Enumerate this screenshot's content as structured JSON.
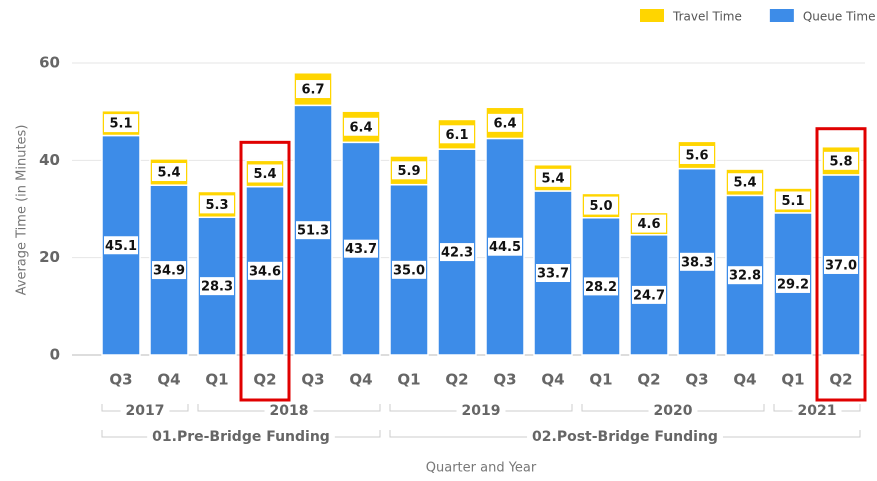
{
  "chart_data": {
    "type": "stacked_bar",
    "ylabel": "Average Time (in Minutes)",
    "xlabel": "Quarter and Year",
    "categories": [
      "Q3",
      "Q4",
      "Q1",
      "Q2",
      "Q3",
      "Q4",
      "Q1",
      "Q2",
      "Q3",
      "Q4",
      "Q1",
      "Q2",
      "Q3",
      "Q4",
      "Q1",
      "Q2"
    ],
    "year_groups": [
      {
        "label": "2017",
        "count": 2
      },
      {
        "label": "2018",
        "count": 4
      },
      {
        "label": "2019",
        "count": 4
      },
      {
        "label": "2020",
        "count": 4
      },
      {
        "label": "2021",
        "count": 2
      }
    ],
    "phase_groups": [
      {
        "label": "01.Pre-Bridge Funding",
        "count": 6
      },
      {
        "label": "02.Post-Bridge Funding",
        "count": 10
      }
    ],
    "series": [
      {
        "name": "Queue Time",
        "color": "#3d8ce8",
        "values": [
          45.1,
          34.9,
          28.3,
          34.6,
          51.3,
          43.7,
          35.0,
          42.3,
          44.5,
          33.7,
          28.2,
          24.7,
          38.3,
          32.8,
          29.2,
          37.0
        ],
        "value_labels": [
          "45.1",
          "34.9",
          "28.3",
          "34.6",
          "51.3",
          "43.7",
          "35.0",
          "42.3",
          "44.5",
          "33.7",
          "28.2",
          "24.7",
          "38.3",
          "32.8",
          "29.2",
          "37.0"
        ]
      },
      {
        "name": "Travel Time",
        "color": "#ffd500",
        "values": [
          5.1,
          5.4,
          5.3,
          5.4,
          6.7,
          6.4,
          5.9,
          6.1,
          6.4,
          5.4,
          5.0,
          4.6,
          5.6,
          5.4,
          5.1,
          5.8
        ],
        "value_labels": [
          "5.1",
          "5.4",
          "5.3",
          "5.4",
          "6.7",
          "6.4",
          "5.9",
          "6.1",
          "6.4",
          "5.4",
          "5.0",
          "4.6",
          "5.6",
          "5.4",
          "5.1",
          "5.8"
        ]
      }
    ],
    "ylim": [
      0,
      60
    ],
    "yticks": [
      0,
      20,
      40,
      60
    ],
    "grid": true,
    "legend": "top-right",
    "highlight": {
      "indices": [
        3,
        15
      ],
      "color": "#e00000"
    }
  }
}
